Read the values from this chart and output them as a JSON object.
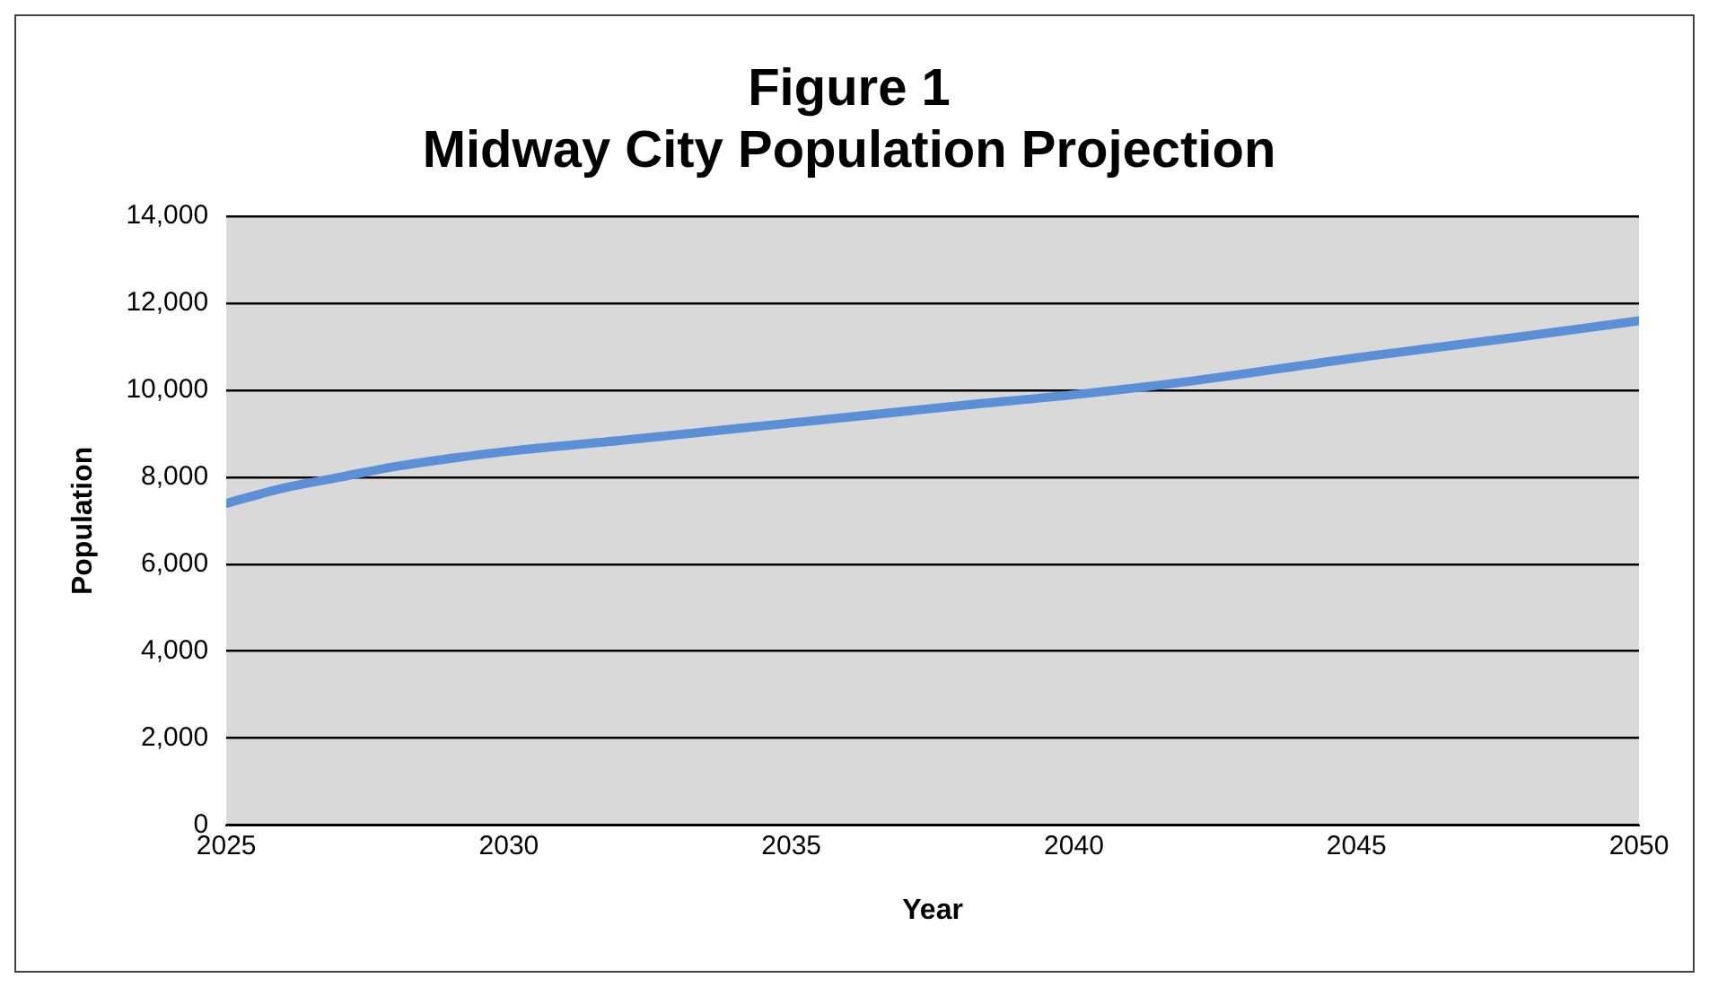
{
  "chart_data": {
    "type": "line",
    "title": "Figure 1",
    "subtitle": "Midway City Population Projection",
    "xlabel": "Year",
    "ylabel": "Population",
    "x": [
      2025,
      2026,
      2027,
      2028,
      2030,
      2032,
      2035,
      2038,
      2040,
      2042,
      2045,
      2048,
      2050
    ],
    "series": [
      {
        "color": "#5b8fd6",
        "values": [
          7400,
          7750,
          8000,
          8250,
          8600,
          8850,
          9250,
          9650,
          9900,
          10200,
          10750,
          11250,
          11600
        ]
      }
    ],
    "xlim": [
      2025,
      2050
    ],
    "xticks": [
      2025,
      2030,
      2035,
      2040,
      2045,
      2050
    ],
    "ylim": [
      0,
      14000
    ],
    "yticks": [
      {
        "value": 0,
        "label": "0"
      },
      {
        "value": 2000,
        "label": "2,000"
      },
      {
        "value": 4000,
        "label": "4,000"
      },
      {
        "value": 6000,
        "label": "6,000"
      },
      {
        "value": 8000,
        "label": "8,000"
      },
      {
        "value": 10000,
        "label": "10,000"
      },
      {
        "value": 12000,
        "label": "12,000"
      },
      {
        "value": 14000,
        "label": "14,000"
      }
    ],
    "grid": "y",
    "legend": false,
    "marker": "none",
    "line_style": "solid"
  }
}
